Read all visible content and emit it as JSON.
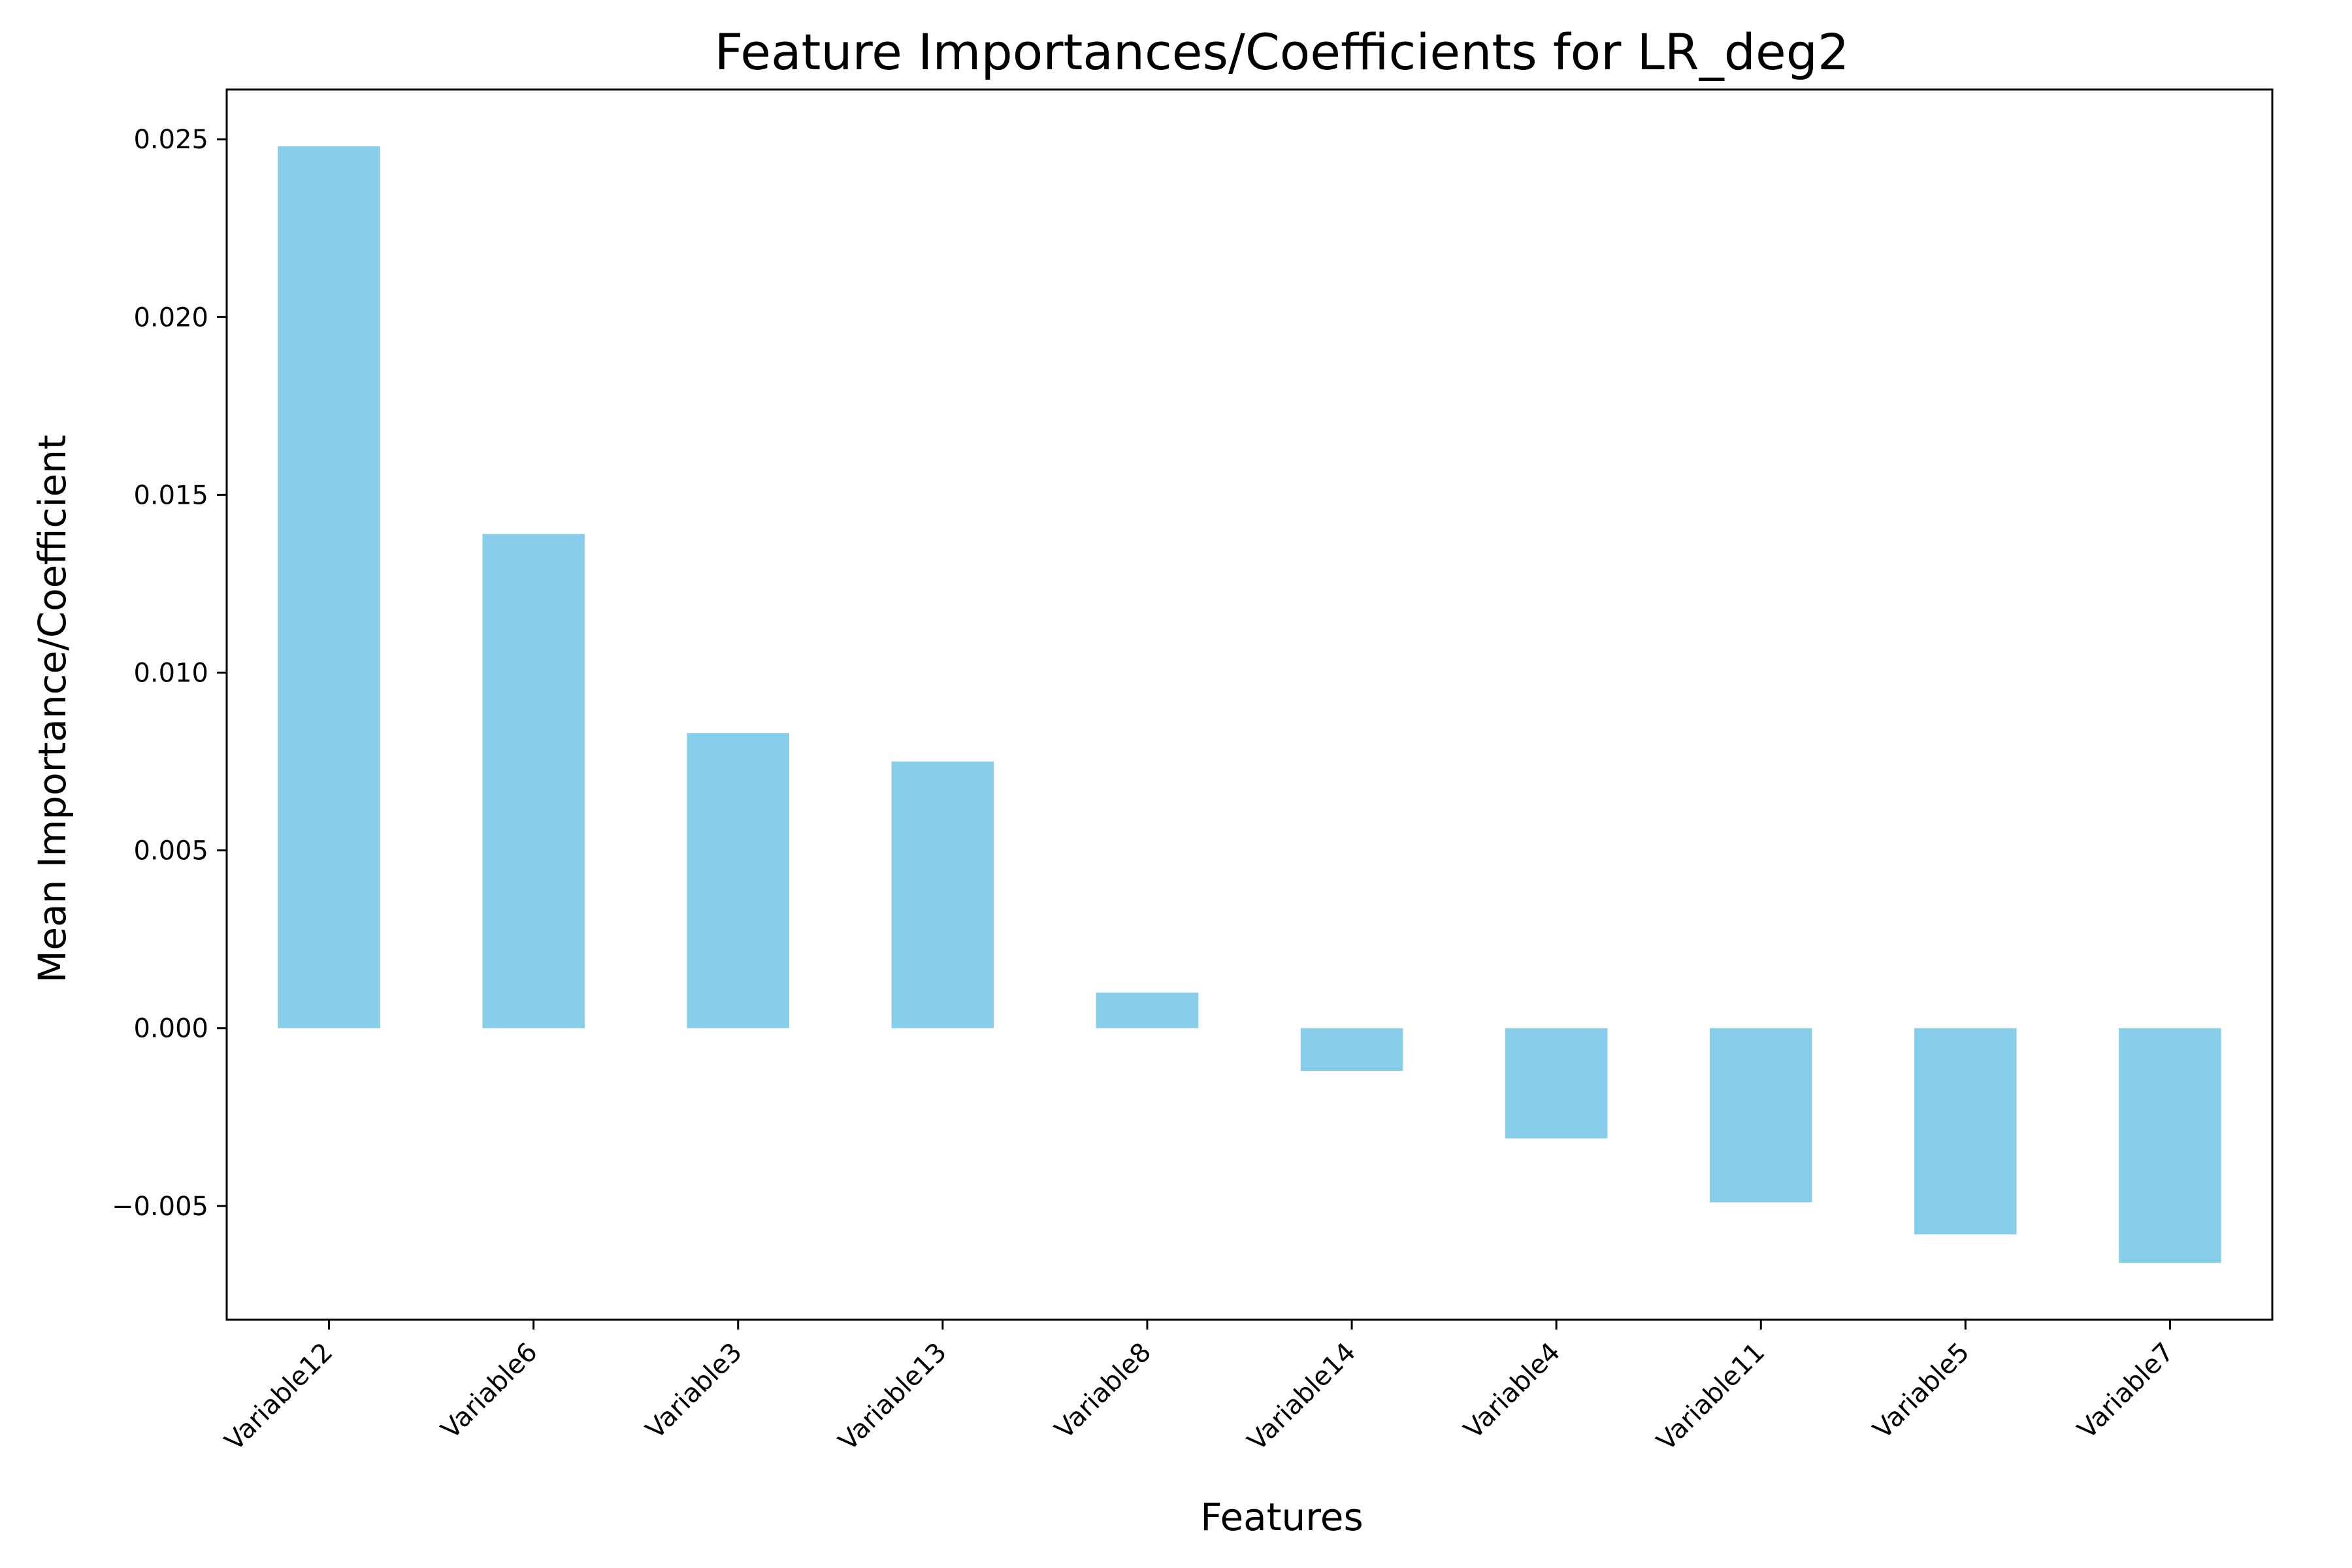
{
  "chart_data": {
    "type": "bar",
    "title": "Feature Importances/Coefficients for LR_deg2",
    "xlabel": "Features",
    "ylabel": "Mean Importance/Coefficient",
    "categories": [
      "Variable12",
      "Variable6",
      "Variable3",
      "Variable13",
      "Variable8",
      "Variable14",
      "Variable4",
      "Variable11",
      "Variable5",
      "Variable7"
    ],
    "values": [
      0.0248,
      0.0139,
      0.0083,
      0.0075,
      0.001,
      -0.0012,
      -0.0031,
      -0.0049,
      -0.0058,
      -0.0066
    ],
    "ylim": [
      -0.0082,
      0.0264
    ],
    "yticks": [
      -0.005,
      0.0,
      0.005,
      0.01,
      0.015,
      0.02,
      0.025
    ],
    "ytick_labels": [
      "−0.005",
      "0.000",
      "0.005",
      "0.010",
      "0.015",
      "0.020",
      "0.025"
    ],
    "bar_color": "#87CEEB",
    "grid": false,
    "legend": "none"
  }
}
